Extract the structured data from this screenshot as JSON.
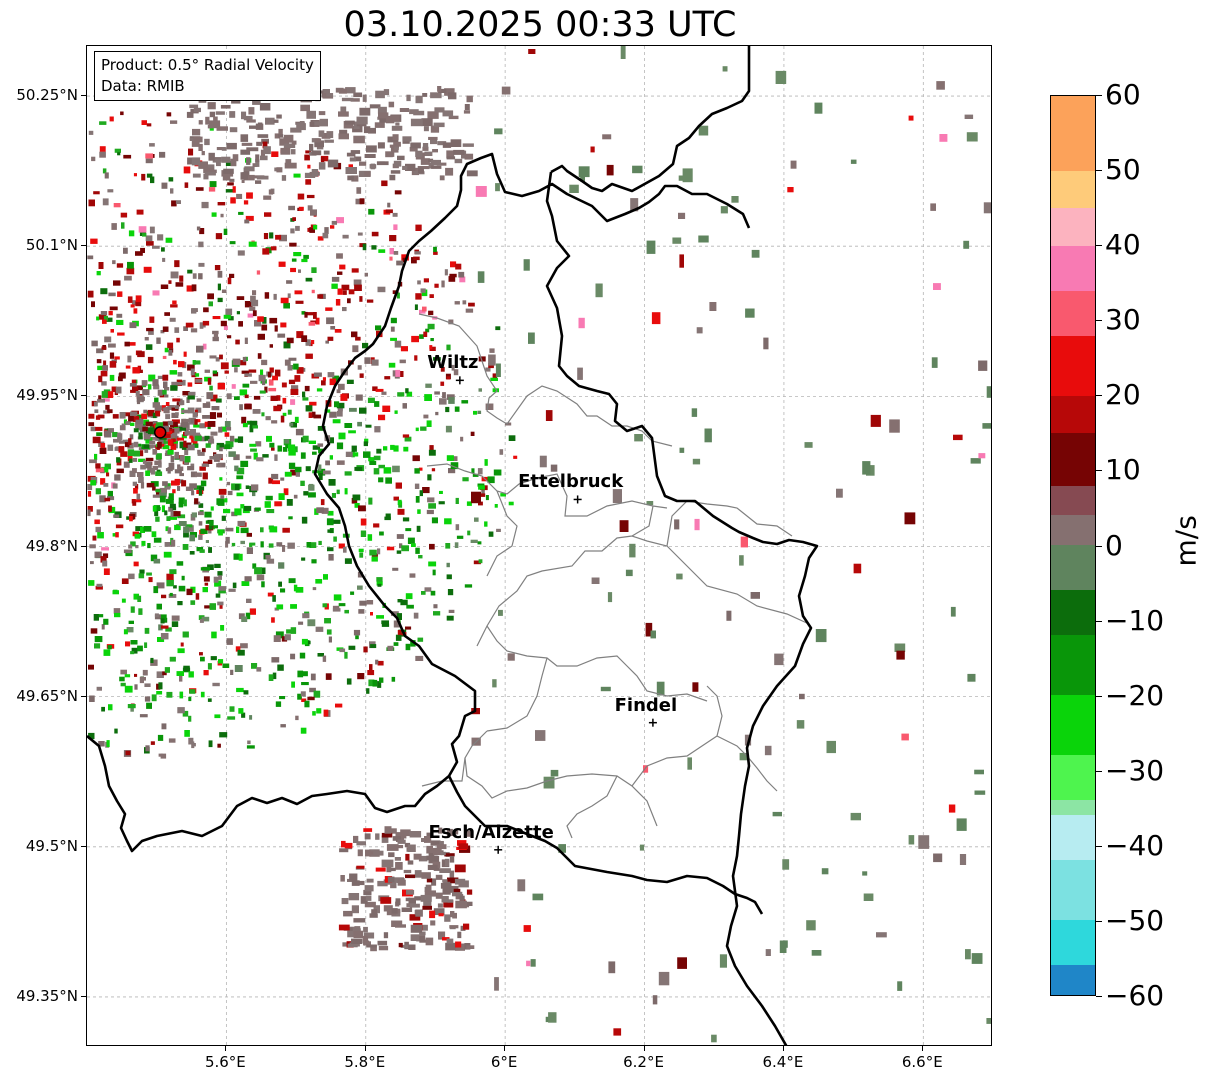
{
  "title": "03.10.2025 00:33 UTC",
  "info_box": {
    "product": "Product: 0.5° Radial Velocity",
    "data_source": "Data: RMIB"
  },
  "axes": {
    "lat_ticks": [
      {
        "value": 50.25,
        "label": "50.25°N"
      },
      {
        "value": 50.1,
        "label": "50.1°N"
      },
      {
        "value": 49.95,
        "label": "49.95°N"
      },
      {
        "value": 49.8,
        "label": "49.8°N"
      },
      {
        "value": 49.65,
        "label": "49.65°N"
      },
      {
        "value": 49.5,
        "label": "49.5°N"
      },
      {
        "value": 49.35,
        "label": "49.35°N"
      }
    ],
    "lon_ticks": [
      {
        "value": 5.6,
        "label": "5.6°E"
      },
      {
        "value": 5.8,
        "label": "5.8°E"
      },
      {
        "value": 6.0,
        "label": "6°E"
      },
      {
        "value": 6.2,
        "label": "6.2°E"
      },
      {
        "value": 6.4,
        "label": "6.4°E"
      },
      {
        "value": 6.6,
        "label": "6.6°E"
      }
    ]
  },
  "cities": [
    {
      "name": "Wiltz",
      "lon": 5.935,
      "lat": 49.966
    },
    {
      "name": "Ettelbruck",
      "lon": 6.104,
      "lat": 49.847
    },
    {
      "name": "Findel",
      "lon": 6.212,
      "lat": 49.624
    },
    {
      "name": "Esch/Alzette",
      "lon": 5.99,
      "lat": 49.497
    }
  ],
  "radar_site": {
    "lon": 5.505,
    "lat": 49.914
  },
  "colorbar": {
    "unit": "m/s",
    "min": -60,
    "max": 60,
    "tick_labels": [
      "60",
      "50",
      "40",
      "30",
      "20",
      "10",
      "0",
      "−10",
      "−20",
      "−30",
      "−40",
      "−50",
      "−60"
    ],
    "bands": [
      {
        "from": 50,
        "to": 60,
        "color": "#fca25a"
      },
      {
        "from": 45,
        "to": 50,
        "color": "#fecb7a"
      },
      {
        "from": 40,
        "to": 45,
        "color": "#fcb3bf"
      },
      {
        "from": 34,
        "to": 40,
        "color": "#f87ab3"
      },
      {
        "from": 28,
        "to": 34,
        "color": "#f9596e"
      },
      {
        "from": 20,
        "to": 28,
        "color": "#e80c0c"
      },
      {
        "from": 15,
        "to": 20,
        "color": "#b70808"
      },
      {
        "from": 8,
        "to": 15,
        "color": "#760404"
      },
      {
        "from": 4,
        "to": 8,
        "color": "#864a52"
      },
      {
        "from": 0,
        "to": 4,
        "color": "#857070"
      },
      {
        "from": -6,
        "to": 0,
        "color": "#5f845e"
      },
      {
        "from": -12,
        "to": -6,
        "color": "#0c6d0c"
      },
      {
        "from": -20,
        "to": -12,
        "color": "#099609"
      },
      {
        "from": -28,
        "to": -20,
        "color": "#0ad40a"
      },
      {
        "from": -34,
        "to": -28,
        "color": "#4ef44e"
      },
      {
        "from": -36,
        "to": -34,
        "color": "#8ce5a4"
      },
      {
        "from": -42,
        "to": -36,
        "color": "#b7ecf1"
      },
      {
        "from": -50,
        "to": -42,
        "color": "#7ce1e1"
      },
      {
        "from": -56,
        "to": -50,
        "color": "#2ed8dc"
      },
      {
        "from": -60,
        "to": -56,
        "color": "#1f86c8"
      }
    ]
  }
}
